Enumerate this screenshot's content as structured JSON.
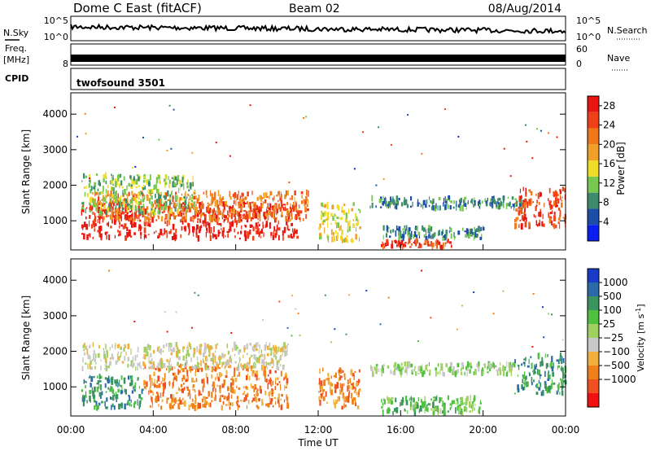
{
  "header": {
    "site": "Dome C East (fitACF)",
    "beam": "Beam 02",
    "date": "08/Aug/2014"
  },
  "summary_panels": {
    "nsky_label": "N.Sky",
    "nsearch_label": "N.Search",
    "freq_label": "Freq.",
    "freq_unit": "[MHz]",
    "nave_label": "Nave",
    "cpid_label": "CPID",
    "cpid_value": "twofsound 3501",
    "noise_ticks": [
      "10^5",
      "10^0"
    ],
    "freq_ticks": [
      "8"
    ],
    "nave_ticks": [
      "60",
      "0"
    ]
  },
  "colors": {
    "power": [
      "#0a1ef0",
      "#1c4ea8",
      "#3c8c6c",
      "#78c850",
      "#f0dc28",
      "#f0a028",
      "#f07818",
      "#f04018",
      "#e81410"
    ],
    "velocity": [
      "#f01010",
      "#f05020",
      "#f08018",
      "#f0b040",
      "#c8c8c8",
      "#a0d060",
      "#50c040",
      "#3a9460",
      "#2a6aa8",
      "#1a3ac8"
    ]
  },
  "chart_data": [
    {
      "type": "heatmap",
      "name": "power",
      "ylabel": "Slant Range [km]",
      "xlabel": "",
      "x_range_hours": [
        0,
        24
      ],
      "y_range_km": [
        180,
        4600
      ],
      "yticks": [
        "1000",
        "2000",
        "3000",
        "4000"
      ],
      "colorbar": {
        "label": "Power [dB]",
        "range": [
          0,
          30
        ],
        "ticks": [
          "4",
          "8",
          "12",
          "16",
          "20",
          "24",
          "28"
        ]
      },
      "regions": [
        {
          "t0": 0.5,
          "t1": 11.0,
          "r0": 500,
          "r1": 1500,
          "level": 8
        },
        {
          "t0": 1.0,
          "t1": 11.5,
          "r0": 1000,
          "r1": 1800,
          "level": 6
        },
        {
          "t0": 0.5,
          "t1": 6.0,
          "r0": 1200,
          "r1": 2300,
          "level": 3
        },
        {
          "t0": 12.0,
          "t1": 14.0,
          "r0": 400,
          "r1": 1500,
          "level": 4
        },
        {
          "t0": 14.5,
          "t1": 22.0,
          "r0": 1350,
          "r1": 1650,
          "level": 2
        },
        {
          "t0": 15.0,
          "t1": 18.5,
          "r0": 250,
          "r1": 450,
          "level": 7
        },
        {
          "t0": 15.0,
          "t1": 20.0,
          "r0": 500,
          "r1": 800,
          "level": 2
        },
        {
          "t0": 21.5,
          "t1": 24.0,
          "r0": 800,
          "r1": 1900,
          "level": 7
        }
      ]
    },
    {
      "type": "heatmap",
      "name": "velocity",
      "ylabel": "Slant Range [km]",
      "xlabel": "Time UT",
      "x_range_hours": [
        0,
        24
      ],
      "y_range_km": [
        180,
        4600
      ],
      "yticks": [
        "1000",
        "2000",
        "3000",
        "4000"
      ],
      "xticks": [
        "00:00",
        "04:00",
        "08:00",
        "12:00",
        "16:00",
        "20:00",
        "00:00"
      ],
      "colorbar": {
        "label": "Velocity [m s",
        "label_sup": "-1",
        "label_end": "]",
        "ticks": [
          "1000",
          "500",
          "100",
          "25",
          "−25",
          "−100",
          "−500",
          "−1000"
        ]
      },
      "regions": [
        {
          "t0": 0.5,
          "t1": 3.5,
          "r0": 400,
          "r1": 1300,
          "level": 7
        },
        {
          "t0": 3.5,
          "t1": 10.5,
          "r0": 400,
          "r1": 1600,
          "level": 2
        },
        {
          "t0": 0.5,
          "t1": 10.5,
          "r0": 1500,
          "r1": 2200,
          "level": 4
        },
        {
          "t0": 12.0,
          "t1": 14.0,
          "r0": 400,
          "r1": 1500,
          "level": 2
        },
        {
          "t0": 14.5,
          "t1": 21.5,
          "r0": 1350,
          "r1": 1650,
          "level": 5
        },
        {
          "t0": 15.0,
          "t1": 20.0,
          "r0": 250,
          "r1": 700,
          "level": 6
        },
        {
          "t0": 21.5,
          "t1": 24.0,
          "r0": 800,
          "r1": 1900,
          "level": 7
        }
      ]
    }
  ]
}
